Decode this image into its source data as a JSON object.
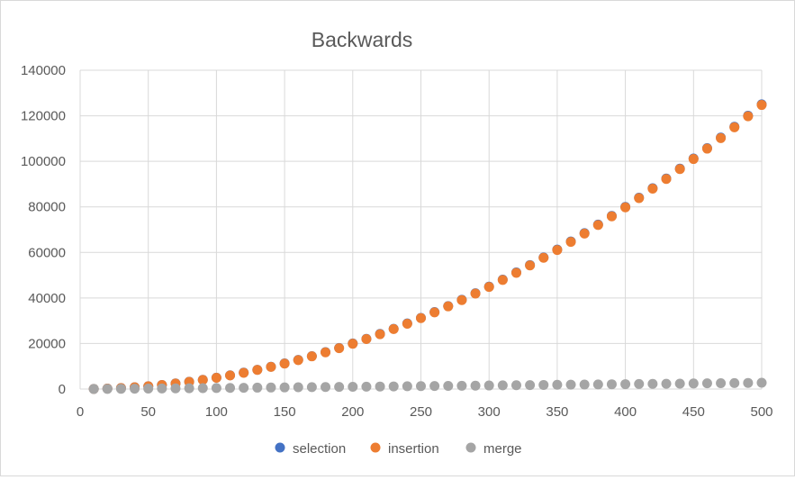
{
  "chart_data": {
    "type": "scatter",
    "title": "Backwards",
    "xlabel": "",
    "ylabel": "",
    "xlim": [
      0,
      500
    ],
    "ylim": [
      0,
      140000
    ],
    "x_ticks": [
      0,
      50,
      100,
      150,
      200,
      250,
      300,
      350,
      400,
      450,
      500
    ],
    "y_ticks": [
      0,
      20000,
      40000,
      60000,
      80000,
      100000,
      120000,
      140000
    ],
    "x_tick_labels": [
      "0",
      "50",
      "100",
      "150",
      "200",
      "250",
      "300",
      "350",
      "400",
      "450",
      "500"
    ],
    "y_tick_labels": [
      "0",
      "20000",
      "40000",
      "60000",
      "80000",
      "100000",
      "120000",
      "140000"
    ],
    "grid": true,
    "legend_position": "bottom",
    "x": [
      10,
      20,
      30,
      40,
      50,
      60,
      70,
      80,
      90,
      100,
      110,
      120,
      130,
      140,
      150,
      160,
      170,
      180,
      190,
      200,
      210,
      220,
      230,
      240,
      250,
      260,
      270,
      280,
      290,
      300,
      310,
      320,
      330,
      340,
      350,
      360,
      370,
      380,
      390,
      400,
      410,
      420,
      430,
      440,
      450,
      460,
      470,
      480,
      490,
      500
    ],
    "series": [
      {
        "name": "selection",
        "color": "#4472c4",
        "values": [
          50,
          200,
          450,
          800,
          1250,
          1800,
          2450,
          3200,
          4050,
          5000,
          6050,
          7200,
          8450,
          9800,
          11250,
          12800,
          14450,
          16200,
          18050,
          20000,
          22050,
          24200,
          26450,
          28800,
          31250,
          33800,
          36450,
          39200,
          42050,
          45000,
          48050,
          51200,
          54450,
          57800,
          61250,
          64800,
          68450,
          72200,
          76050,
          80000,
          84050,
          88200,
          92450,
          96800,
          101250,
          105800,
          110450,
          115200,
          120050,
          125000
        ]
      },
      {
        "name": "insertion",
        "color": "#ed7d31",
        "values": [
          45,
          190,
          435,
          780,
          1225,
          1770,
          2415,
          3160,
          4005,
          4950,
          5995,
          7140,
          8385,
          9730,
          11175,
          12720,
          14365,
          16110,
          17955,
          19900,
          21945,
          24090,
          26335,
          28680,
          31125,
          33670,
          36315,
          39060,
          41905,
          44850,
          47895,
          51040,
          54285,
          57630,
          61075,
          64620,
          68265,
          72010,
          75855,
          79800,
          83845,
          87990,
          92235,
          96580,
          101025,
          105570,
          110215,
          114960,
          119805,
          124750
        ]
      },
      {
        "name": "merge",
        "color": "#a5a5a5",
        "values": [
          25,
          70,
          110,
          160,
          210,
          250,
          300,
          350,
          400,
          450,
          500,
          560,
          620,
          670,
          720,
          780,
          840,
          890,
          940,
          990,
          1050,
          1110,
          1160,
          1220,
          1280,
          1340,
          1390,
          1440,
          1500,
          1560,
          1620,
          1680,
          1740,
          1800,
          1860,
          1920,
          1980,
          2040,
          2100,
          2150,
          2210,
          2270,
          2330,
          2390,
          2450,
          2510,
          2570,
          2630,
          2690,
          2750
        ]
      }
    ]
  }
}
